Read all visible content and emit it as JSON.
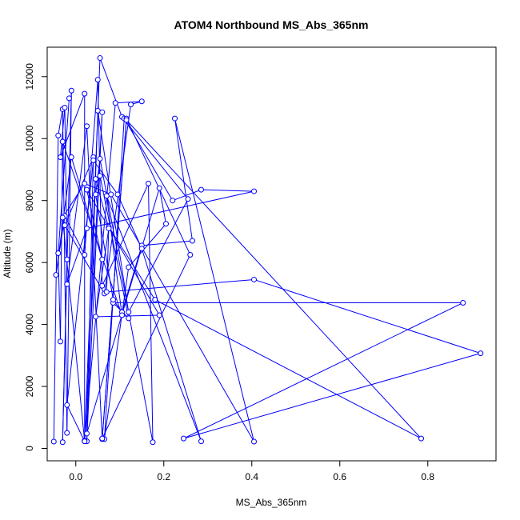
{
  "chart_data": {
    "type": "line",
    "title": "ATOM4 Northbound MS_Abs_365nm",
    "xlabel": "MS_Abs_365nm",
    "ylabel": "Altitude (m)",
    "xlim": [
      -0.065,
      0.955
    ],
    "ylim": [
      -400,
      12950
    ],
    "x_ticks": [
      0.0,
      0.2,
      0.4,
      0.6,
      0.8
    ],
    "x_tick_labels": [
      "0.0",
      "0.2",
      "0.4",
      "0.6",
      "0.8"
    ],
    "y_ticks": [
      0,
      2000,
      4000,
      6000,
      8000,
      10000,
      12000
    ],
    "y_tick_labels": [
      "0",
      "2000",
      "4000",
      "6000",
      "8000",
      "10000",
      "12000"
    ],
    "grid": false,
    "legend": "none",
    "series_color": "#0000ff",
    "markers": "open-circle",
    "series": [
      {
        "points": [
          [
            -0.05,
            220
          ],
          [
            -0.04,
            10100
          ],
          [
            -0.03,
            10950
          ],
          [
            -0.02,
            500
          ],
          [
            -0.01,
            11550
          ],
          [
            -0.03,
            200
          ],
          [
            -0.02,
            6100
          ],
          [
            -0.025,
            11000
          ],
          [
            -0.035,
            9400
          ],
          [
            0.02,
            11450
          ],
          [
            0.02,
            230
          ],
          [
            0.055,
            12600
          ],
          [
            0.105,
            10700
          ],
          [
            0.255,
            8050
          ],
          [
            0.12,
            4400
          ],
          [
            0.05,
            10900
          ],
          [
            0.025,
            230
          ],
          [
            0.06,
            10850
          ],
          [
            0.02,
            250
          ],
          [
            0.09,
            11150
          ],
          [
            0.15,
            11200
          ],
          [
            0.125,
            11100
          ],
          [
            0.065,
            5000
          ],
          [
            -0.025,
            7200
          ],
          [
            0.04,
            9400
          ],
          [
            0.025,
            480
          ],
          [
            0.19,
            8400
          ],
          [
            0.205,
            7250
          ],
          [
            0.12,
            5850
          ],
          [
            0.065,
            300
          ],
          [
            0.11,
            10650
          ],
          [
            0.22,
            8000
          ],
          [
            0.285,
            8350
          ],
          [
            0.405,
            8300
          ],
          [
            0.025,
            7100
          ],
          [
            -0.02,
            5300
          ],
          [
            0.025,
            10400
          ],
          [
            0.06,
            300
          ],
          [
            0.115,
            10650
          ],
          [
            0.26,
            6250
          ],
          [
            0.06,
            320
          ],
          [
            0.115,
            10600
          ],
          [
            0.785,
            320
          ],
          [
            0.18,
            4800
          ],
          [
            0.075,
            7150
          ],
          [
            0.07,
            5050
          ],
          [
            0.405,
            5450
          ],
          [
            0.92,
            3070
          ],
          [
            0.245,
            320
          ],
          [
            0.88,
            4700
          ],
          [
            0.085,
            4700
          ],
          [
            0.12,
            4200
          ],
          [
            0.055,
            8800
          ],
          [
            0.045,
            8700
          ],
          [
            0.075,
            7100
          ],
          [
            0.045,
            4250
          ],
          [
            0.19,
            4300
          ],
          [
            0.025,
            8350
          ],
          [
            0.06,
            6100
          ],
          [
            -0.01,
            9400
          ],
          [
            -0.045,
            5600
          ],
          [
            -0.025,
            7500
          ],
          [
            0.02,
            6250
          ],
          [
            0.05,
            11900
          ],
          [
            0.06,
            5250
          ],
          [
            0.165,
            8550
          ],
          [
            0.175,
            200
          ],
          [
            0.055,
            9350
          ],
          [
            0.045,
            8200
          ],
          [
            0.085,
            4800
          ],
          [
            0.105,
            4400
          ],
          [
            0.15,
            6550
          ],
          [
            0.265,
            6700
          ],
          [
            0.225,
            10650
          ],
          [
            0.405,
            220
          ],
          [
            0.08,
            8200
          ],
          [
            0.02,
            8550
          ],
          [
            -0.03,
            7450
          ],
          [
            0.02,
            230
          ],
          [
            -0.02,
            1400
          ],
          [
            0.04,
            9300
          ],
          [
            0.095,
            8200
          ],
          [
            0.15,
            6450
          ],
          [
            0.285,
            230
          ],
          [
            0.07,
            8150
          ],
          [
            0.105,
            4300
          ],
          [
            -0.03,
            9900
          ],
          [
            -0.035,
            3450
          ],
          [
            -0.04,
            6300
          ],
          [
            -0.015,
            11300
          ]
        ]
      }
    ]
  }
}
